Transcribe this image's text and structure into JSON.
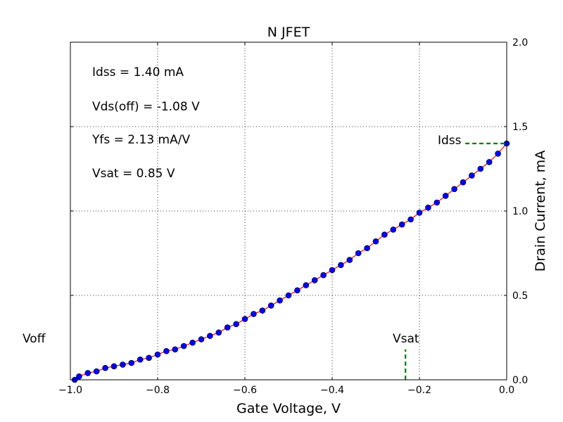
{
  "chart_data": {
    "type": "line",
    "title": "N JFET",
    "xlabel": "Gate Voltage, V",
    "ylabel": "Drain Current, mA",
    "xlim": [
      -1.0,
      0.0
    ],
    "ylim": [
      0.0,
      2.0
    ],
    "x_ticks": [
      -1.0,
      -0.8,
      -0.6,
      -0.4,
      -0.2,
      0.0
    ],
    "x_tick_labels": [
      "−1.0",
      "−0.8",
      "−0.6",
      "−0.4",
      "−0.2",
      "0.0"
    ],
    "y_ticks": [
      0.0,
      0.5,
      1.0,
      1.5,
      2.0
    ],
    "y_tick_labels": [
      "0.0",
      "0.5",
      "1.0",
      "1.5",
      "2.0"
    ],
    "y_axis_side": "right",
    "grid": true,
    "series": [
      {
        "line_color": "#ff0000",
        "marker_color": "#0000ff",
        "marker": "circle",
        "x": [
          -0.99,
          -0.98,
          -0.96,
          -0.94,
          -0.92,
          -0.9,
          -0.88,
          -0.86,
          -0.84,
          -0.82,
          -0.8,
          -0.78,
          -0.76,
          -0.74,
          -0.72,
          -0.7,
          -0.68,
          -0.66,
          -0.64,
          -0.62,
          -0.6,
          -0.58,
          -0.56,
          -0.54,
          -0.52,
          -0.5,
          -0.48,
          -0.46,
          -0.44,
          -0.42,
          -0.4,
          -0.38,
          -0.36,
          -0.34,
          -0.32,
          -0.3,
          -0.28,
          -0.26,
          -0.24,
          -0.22,
          -0.2,
          -0.18,
          -0.16,
          -0.14,
          -0.12,
          -0.1,
          -0.08,
          -0.06,
          -0.04,
          -0.02,
          0.0
        ],
        "y": [
          0.0,
          0.02,
          0.04,
          0.05,
          0.07,
          0.08,
          0.09,
          0.1,
          0.12,
          0.13,
          0.15,
          0.17,
          0.18,
          0.2,
          0.22,
          0.24,
          0.26,
          0.28,
          0.31,
          0.33,
          0.36,
          0.39,
          0.41,
          0.44,
          0.47,
          0.5,
          0.53,
          0.56,
          0.59,
          0.62,
          0.65,
          0.68,
          0.71,
          0.75,
          0.78,
          0.82,
          0.86,
          0.89,
          0.92,
          0.95,
          0.99,
          1.02,
          1.05,
          1.09,
          1.13,
          1.17,
          1.21,
          1.25,
          1.29,
          1.34,
          1.4
        ]
      }
    ],
    "annotations": {
      "lines": [
        "Idss = 1.40 mA",
        "Vds(off) = -1.08 V",
        "Yfs = 2.13 mA/V",
        "Vsat = 0.85 V"
      ],
      "idss_marker": {
        "label": "Idss",
        "y": 1.4,
        "x_from": -0.095,
        "x_to": 0.0,
        "color": "#008000"
      },
      "vsat_marker": {
        "label": "Vsat",
        "x": -0.232,
        "y_to": 0.18,
        "color": "#008000"
      },
      "voff_marker": {
        "label": "Voff",
        "x": -1.08
      }
    }
  }
}
